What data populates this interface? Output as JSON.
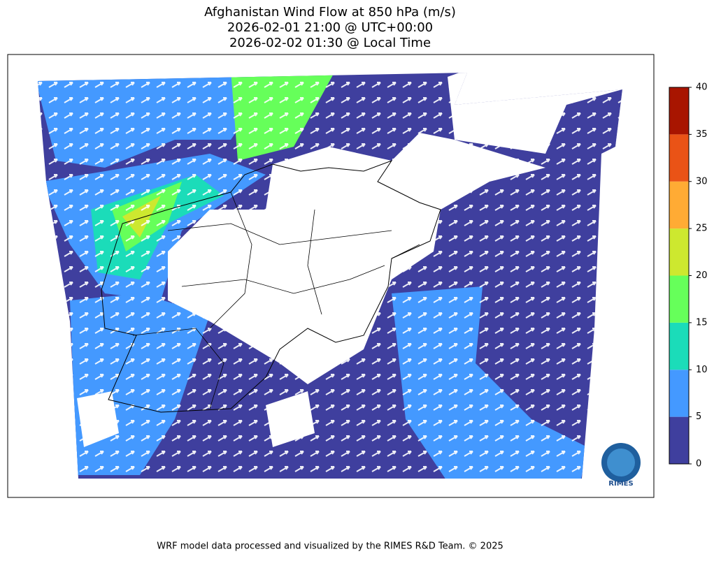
{
  "title": [
    "Afghanistan Wind Flow at 850 hPa (m/s)",
    "2026-02-01 21:00 @ UTC+00:00",
    "2026-02-02 01:30 @ Local Time"
  ],
  "colorbar": {
    "lim": [
      0,
      40
    ],
    "ticks": [
      0,
      5,
      10,
      15,
      20,
      25,
      30,
      35,
      40
    ],
    "colors": [
      "#3f3f9e",
      "#4499ff",
      "#1bdcb9",
      "#66ff5a",
      "#cde82f",
      "#ffab34",
      "#ea5316",
      "#a81500"
    ]
  },
  "logo": "RIMES",
  "footer": "WRF model data processed and visualized by the RIMES R&D Team. © 2025"
}
